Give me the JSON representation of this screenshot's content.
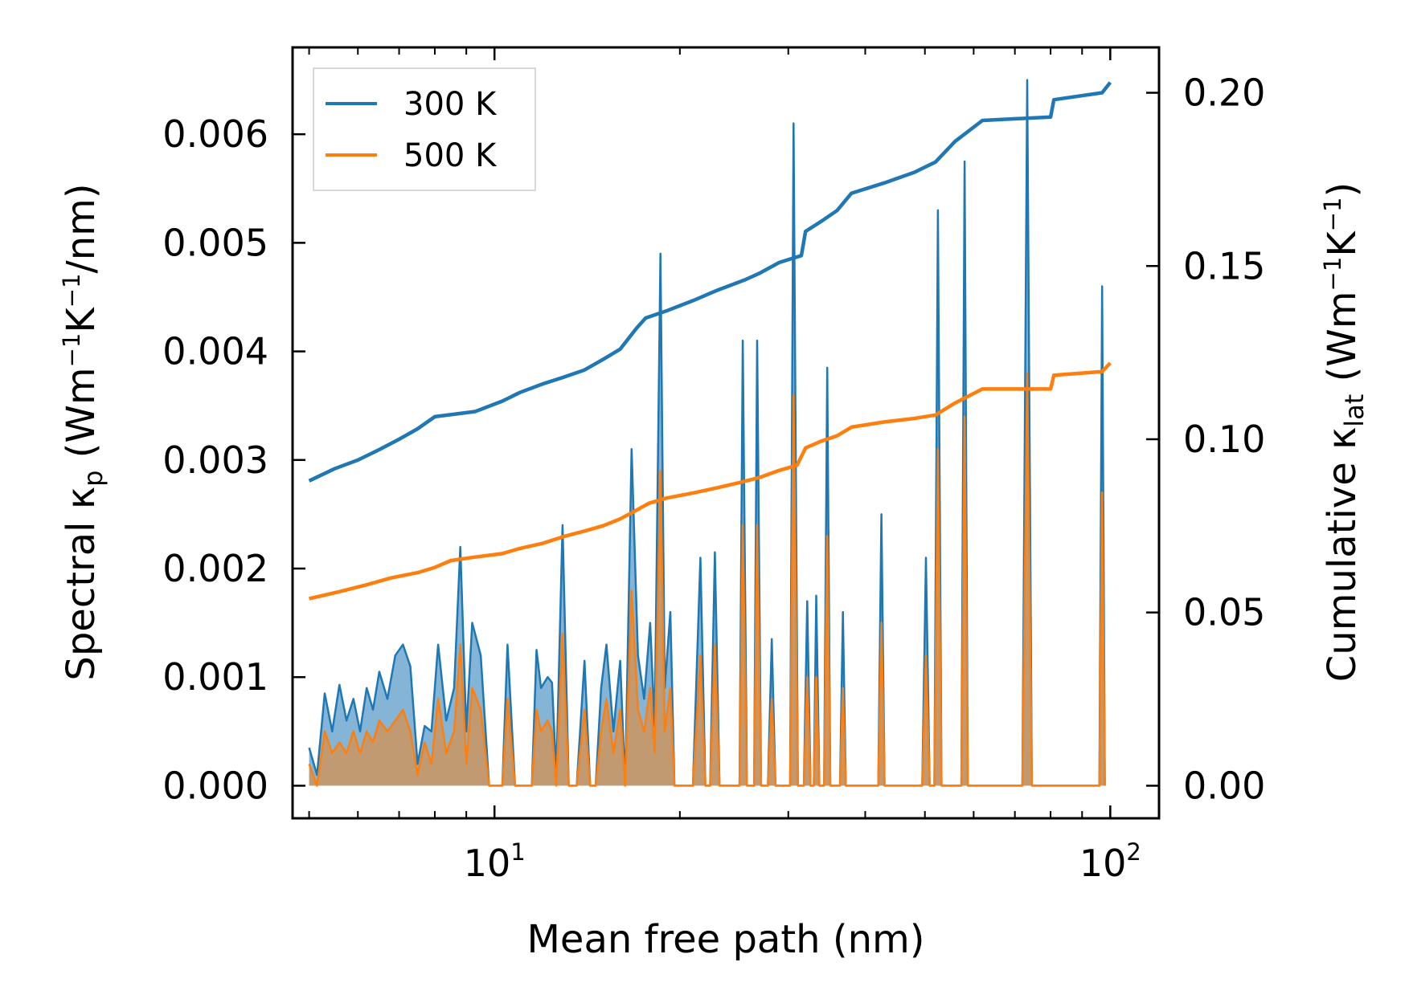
{
  "chart_data": {
    "type": "line",
    "xscale": "log",
    "xlim": [
      4.7,
      120
    ],
    "ylim_left": [
      -0.0003,
      0.0068
    ],
    "ylim_right": [
      -0.0094,
      0.2131
    ],
    "xlabel": "Mean free path (nm)",
    "ylabel_left": {
      "pre": "Spectral κ",
      "sub": "p",
      "mid": " (Wm",
      "sup1": "−1",
      "mid2": "K",
      "sup2": "−1",
      "post": "/nm)"
    },
    "ylabel_right": {
      "pre": "Cumulative κ",
      "sub": "lat",
      "mid": " (Wm",
      "sup1": "−1",
      "mid2": "K",
      "sup2": "−1",
      "post": ")"
    },
    "x_ticks": [
      {
        "value": 10,
        "base": "10",
        "exp": "1"
      },
      {
        "value": 100,
        "base": "10",
        "exp": "2"
      }
    ],
    "y_left_ticks": [
      {
        "value": 0.0,
        "label": "0.000"
      },
      {
        "value": 0.001,
        "label": "0.001"
      },
      {
        "value": 0.002,
        "label": "0.002"
      },
      {
        "value": 0.003,
        "label": "0.003"
      },
      {
        "value": 0.004,
        "label": "0.004"
      },
      {
        "value": 0.005,
        "label": "0.005"
      },
      {
        "value": 0.006,
        "label": "0.006"
      }
    ],
    "y_right_ticks": [
      {
        "value": 0.0,
        "label": "0.00"
      },
      {
        "value": 0.05,
        "label": "0.05"
      },
      {
        "value": 0.1,
        "label": "0.10"
      },
      {
        "value": 0.15,
        "label": "0.15"
      },
      {
        "value": 0.2,
        "label": "0.20"
      }
    ],
    "legend": {
      "position": "upper-left"
    },
    "series": [
      {
        "name": "300 K",
        "color": "#1f77b4",
        "cumulative": [
          [
            5.0,
            0.088
          ],
          [
            5.5,
            0.0915
          ],
          [
            6.0,
            0.094
          ],
          [
            6.5,
            0.097
          ],
          [
            7.0,
            0.1
          ],
          [
            7.5,
            0.103
          ],
          [
            8.0,
            0.1065
          ],
          [
            9.3,
            0.108
          ],
          [
            10.3,
            0.111
          ],
          [
            11.0,
            0.1135
          ],
          [
            12.0,
            0.116
          ],
          [
            13.0,
            0.118
          ],
          [
            14.0,
            0.12
          ],
          [
            15.0,
            0.123
          ],
          [
            16.0,
            0.126
          ],
          [
            17.0,
            0.132
          ],
          [
            17.6,
            0.135
          ],
          [
            19.0,
            0.137
          ],
          [
            21.0,
            0.14
          ],
          [
            23.0,
            0.143
          ],
          [
            25.5,
            0.146
          ],
          [
            27.0,
            0.148
          ],
          [
            29.0,
            0.151
          ],
          [
            31.5,
            0.153
          ],
          [
            32.0,
            0.16
          ],
          [
            34.0,
            0.163
          ],
          [
            36.0,
            0.166
          ],
          [
            38.0,
            0.171
          ],
          [
            43.0,
            0.174
          ],
          [
            48.0,
            0.177
          ],
          [
            52.0,
            0.18
          ],
          [
            56.0,
            0.186
          ],
          [
            62.0,
            0.192
          ],
          [
            80.0,
            0.193
          ],
          [
            81.0,
            0.198
          ],
          [
            97.0,
            0.2
          ],
          [
            100.0,
            0.203
          ]
        ],
        "spectral": [
          [
            5.0,
            0.00035
          ],
          [
            5.15,
            0.0001
          ],
          [
            5.3,
            0.00085
          ],
          [
            5.45,
            0.0005
          ],
          [
            5.6,
            0.00093
          ],
          [
            5.75,
            0.0006
          ],
          [
            5.9,
            0.0008
          ],
          [
            6.05,
            0.0005
          ],
          [
            6.2,
            0.0009
          ],
          [
            6.35,
            0.0007
          ],
          [
            6.5,
            0.00105
          ],
          [
            6.7,
            0.0008
          ],
          [
            6.9,
            0.0012
          ],
          [
            7.1,
            0.0013
          ],
          [
            7.3,
            0.0011
          ],
          [
            7.5,
            0.0002
          ],
          [
            7.7,
            0.00055
          ],
          [
            7.9,
            0.0005
          ],
          [
            8.1,
            0.0013
          ],
          [
            8.35,
            0.0006
          ],
          [
            8.6,
            0.0009
          ],
          [
            8.8,
            0.0022
          ],
          [
            9.0,
            0.0005
          ],
          [
            9.2,
            0.0015
          ],
          [
            9.5,
            0.0012
          ],
          [
            9.8,
            0.0
          ],
          [
            10.3,
            0.0
          ],
          [
            10.5,
            0.0013
          ],
          [
            10.8,
            0.0
          ],
          [
            11.5,
            0.0
          ],
          [
            11.7,
            0.00125
          ],
          [
            11.9,
            0.0009
          ],
          [
            12.2,
            0.001
          ],
          [
            12.4,
            0.00095
          ],
          [
            12.6,
            0.0001
          ],
          [
            12.9,
            0.0024
          ],
          [
            13.2,
            0.0
          ],
          [
            13.6,
            0.0
          ],
          [
            14.0,
            0.00115
          ],
          [
            14.3,
            0.0
          ],
          [
            14.6,
            0.0
          ],
          [
            14.9,
            0.0009
          ],
          [
            15.2,
            0.0013
          ],
          [
            15.6,
            0.0005
          ],
          [
            16.0,
            0.00115
          ],
          [
            16.3,
            0.0
          ],
          [
            16.7,
            0.0031
          ],
          [
            17.1,
            0.0012
          ],
          [
            17.5,
            0.0008
          ],
          [
            17.9,
            0.0015
          ],
          [
            18.2,
            0.00055
          ],
          [
            18.6,
            0.0049
          ],
          [
            18.9,
            0.0009
          ],
          [
            19.3,
            0.0016
          ],
          [
            19.6,
            0.0
          ],
          [
            21.0,
            0.0
          ],
          [
            21.6,
            0.0021
          ],
          [
            22.0,
            0.0
          ],
          [
            22.4,
            0.0
          ],
          [
            22.8,
            0.00215
          ],
          [
            23.2,
            0.0
          ],
          [
            25.0,
            0.0
          ],
          [
            25.3,
            0.0041
          ],
          [
            25.7,
            0.0
          ],
          [
            26.4,
            0.0
          ],
          [
            26.7,
            0.0041
          ],
          [
            27.1,
            0.0
          ],
          [
            27.8,
            0.0
          ],
          [
            28.2,
            0.00135
          ],
          [
            28.6,
            0.0
          ],
          [
            30.2,
            0.0
          ],
          [
            30.6,
            0.0061
          ],
          [
            31.1,
            0.0
          ],
          [
            31.8,
            0.0
          ],
          [
            32.2,
            0.0017
          ],
          [
            32.6,
            0.0
          ],
          [
            33.0,
            0.0
          ],
          [
            33.3,
            0.00175
          ],
          [
            33.7,
            0.0
          ],
          [
            34.3,
            0.0
          ],
          [
            34.7,
            0.00385
          ],
          [
            35.1,
            0.0
          ],
          [
            36.4,
            0.0
          ],
          [
            36.8,
            0.0016
          ],
          [
            37.2,
            0.0
          ],
          [
            42.0,
            0.0
          ],
          [
            42.5,
            0.0025
          ],
          [
            43.0,
            0.0
          ],
          [
            49.5,
            0.0
          ],
          [
            50.2,
            0.0021
          ],
          [
            50.9,
            0.0
          ],
          [
            51.8,
            0.0
          ],
          [
            52.5,
            0.0053
          ],
          [
            53.2,
            0.0
          ],
          [
            57.3,
            0.0
          ],
          [
            58.0,
            0.00575
          ],
          [
            58.7,
            0.0
          ],
          [
            72.0,
            0.0
          ],
          [
            73.3,
            0.0065
          ],
          [
            74.6,
            0.0
          ],
          [
            96.0,
            0.0
          ],
          [
            97.0,
            0.0046
          ],
          [
            98.0,
            0.0
          ]
        ]
      },
      {
        "name": "500 K",
        "color": "#ff7f0e",
        "cumulative": [
          [
            5.0,
            0.054
          ],
          [
            5.6,
            0.056
          ],
          [
            6.2,
            0.058
          ],
          [
            6.8,
            0.06
          ],
          [
            7.5,
            0.0615
          ],
          [
            8.0,
            0.063
          ],
          [
            8.5,
            0.065
          ],
          [
            9.3,
            0.066
          ],
          [
            10.3,
            0.067
          ],
          [
            11.0,
            0.0685
          ],
          [
            12.0,
            0.07
          ],
          [
            13.0,
            0.072
          ],
          [
            14.0,
            0.0735
          ],
          [
            15.0,
            0.075
          ],
          [
            16.0,
            0.077
          ],
          [
            17.0,
            0.0795
          ],
          [
            17.8,
            0.0815
          ],
          [
            19.0,
            0.083
          ],
          [
            21.0,
            0.0845
          ],
          [
            23.0,
            0.086
          ],
          [
            25.0,
            0.0875
          ],
          [
            27.0,
            0.089
          ],
          [
            29.0,
            0.091
          ],
          [
            31.0,
            0.0925
          ],
          [
            32.0,
            0.0975
          ],
          [
            34.0,
            0.0995
          ],
          [
            36.0,
            0.101
          ],
          [
            38.0,
            0.1035
          ],
          [
            43.0,
            0.105
          ],
          [
            48.0,
            0.106
          ],
          [
            52.0,
            0.107
          ],
          [
            56.0,
            0.1105
          ],
          [
            62.0,
            0.1145
          ],
          [
            80.0,
            0.1145
          ],
          [
            81.0,
            0.1185
          ],
          [
            97.0,
            0.1195
          ],
          [
            100.0,
            0.122
          ]
        ],
        "spectral": [
          [
            5.0,
            0.0002
          ],
          [
            5.15,
            0.0
          ],
          [
            5.3,
            0.0005
          ],
          [
            5.45,
            0.0003
          ],
          [
            5.6,
            0.0004
          ],
          [
            5.75,
            0.0003
          ],
          [
            5.9,
            0.0005
          ],
          [
            6.05,
            0.0003
          ],
          [
            6.2,
            0.0005
          ],
          [
            6.35,
            0.0004
          ],
          [
            6.5,
            0.0006
          ],
          [
            6.7,
            0.0005
          ],
          [
            6.9,
            0.0006
          ],
          [
            7.1,
            0.0007
          ],
          [
            7.3,
            0.0005
          ],
          [
            7.5,
            0.0001
          ],
          [
            7.7,
            0.0004
          ],
          [
            7.9,
            0.0002
          ],
          [
            8.1,
            0.0008
          ],
          [
            8.35,
            0.0003
          ],
          [
            8.6,
            0.0005
          ],
          [
            8.8,
            0.0013
          ],
          [
            9.0,
            0.0002
          ],
          [
            9.2,
            0.0009
          ],
          [
            9.5,
            0.0007
          ],
          [
            9.8,
            0.0
          ],
          [
            10.3,
            0.0
          ],
          [
            10.5,
            0.0008
          ],
          [
            10.8,
            0.0
          ],
          [
            11.5,
            0.0
          ],
          [
            11.7,
            0.0007
          ],
          [
            11.9,
            0.0005
          ],
          [
            12.2,
            0.0006
          ],
          [
            12.4,
            0.0005
          ],
          [
            12.6,
            0.0
          ],
          [
            12.9,
            0.0014
          ],
          [
            13.2,
            0.0
          ],
          [
            13.6,
            0.0
          ],
          [
            14.0,
            0.0007
          ],
          [
            14.3,
            0.0
          ],
          [
            14.6,
            0.0
          ],
          [
            14.9,
            0.0005
          ],
          [
            15.2,
            0.0008
          ],
          [
            15.6,
            0.0003
          ],
          [
            16.0,
            0.0007
          ],
          [
            16.3,
            0.0
          ],
          [
            16.7,
            0.0018
          ],
          [
            17.1,
            0.0007
          ],
          [
            17.5,
            0.0005
          ],
          [
            17.9,
            0.0009
          ],
          [
            18.2,
            0.0003
          ],
          [
            18.6,
            0.0029
          ],
          [
            18.9,
            0.0005
          ],
          [
            19.3,
            0.0009
          ],
          [
            19.6,
            0.0
          ],
          [
            21.0,
            0.0
          ],
          [
            21.6,
            0.0012
          ],
          [
            22.0,
            0.0
          ],
          [
            22.4,
            0.0
          ],
          [
            22.8,
            0.0013
          ],
          [
            23.2,
            0.0
          ],
          [
            25.0,
            0.0
          ],
          [
            25.3,
            0.0024
          ],
          [
            25.7,
            0.0
          ],
          [
            26.4,
            0.0
          ],
          [
            26.7,
            0.0024
          ],
          [
            27.1,
            0.0
          ],
          [
            27.8,
            0.0
          ],
          [
            28.2,
            0.0008
          ],
          [
            28.6,
            0.0
          ],
          [
            30.2,
            0.0
          ],
          [
            30.6,
            0.0036
          ],
          [
            31.1,
            0.0
          ],
          [
            31.8,
            0.0
          ],
          [
            32.2,
            0.001
          ],
          [
            32.6,
            0.0
          ],
          [
            33.0,
            0.0
          ],
          [
            33.3,
            0.001
          ],
          [
            33.7,
            0.0
          ],
          [
            34.3,
            0.0
          ],
          [
            34.7,
            0.0023
          ],
          [
            35.1,
            0.0
          ],
          [
            36.4,
            0.0
          ],
          [
            36.8,
            0.0009
          ],
          [
            37.2,
            0.0
          ],
          [
            42.0,
            0.0
          ],
          [
            42.5,
            0.0015
          ],
          [
            43.0,
            0.0
          ],
          [
            49.5,
            0.0
          ],
          [
            50.2,
            0.0012
          ],
          [
            50.9,
            0.0
          ],
          [
            51.8,
            0.0
          ],
          [
            52.5,
            0.0031
          ],
          [
            53.2,
            0.0
          ],
          [
            57.3,
            0.0
          ],
          [
            58.0,
            0.0034
          ],
          [
            58.7,
            0.0
          ],
          [
            72.0,
            0.0
          ],
          [
            73.3,
            0.0038
          ],
          [
            74.6,
            0.0
          ],
          [
            96.0,
            0.0
          ],
          [
            97.0,
            0.0027
          ],
          [
            98.0,
            0.0
          ]
        ]
      }
    ]
  }
}
